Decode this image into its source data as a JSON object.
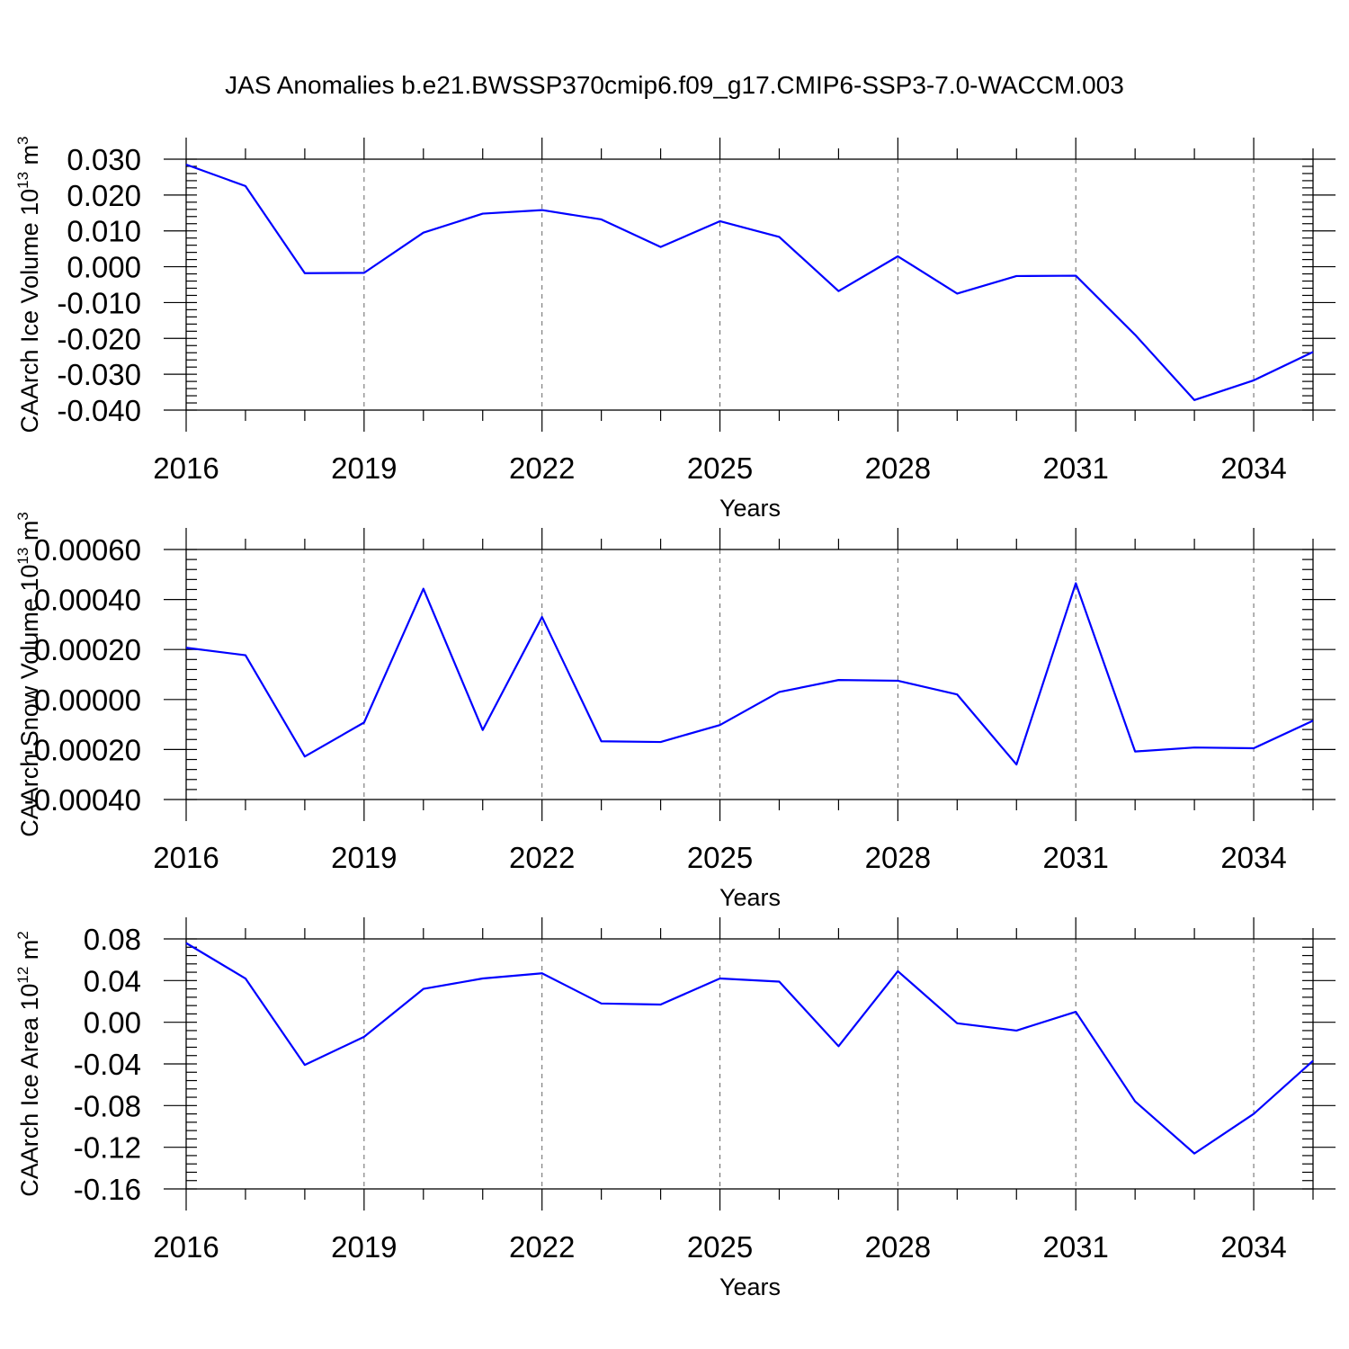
{
  "title": "JAS Anomalies b.e21.BWSSP370cmip6.f09_g17.CMIP6-SSP3-7.0-WACCM.003",
  "colors": {
    "series": "#0000ff",
    "axes": "#000000",
    "grid": "#666666"
  },
  "chart_data": [
    {
      "type": "line",
      "xlabel": "Years",
      "ylabel": {
        "base": "CAArch Ice Volume 10",
        "exp": "13",
        "unit": " m",
        "unit_exp": "3"
      },
      "xlim": [
        2016,
        2035
      ],
      "ylim": [
        -0.04,
        0.03
      ],
      "yticks": [
        -0.04,
        -0.03,
        -0.02,
        -0.01,
        0.0,
        0.01,
        0.02,
        0.03
      ],
      "ytick_labels": [
        "-0.040",
        "-0.030",
        "-0.020",
        "-0.010",
        "0.000",
        "0.010",
        "0.020",
        "0.030"
      ],
      "yminor_step": 0.002,
      "xticks": [
        2016,
        2019,
        2022,
        2025,
        2028,
        2031,
        2034
      ],
      "xtick_labels": [
        "2016",
        "2019",
        "2022",
        "2025",
        "2028",
        "2031",
        "2034"
      ],
      "x": [
        2016,
        2017,
        2018,
        2019,
        2020,
        2021,
        2022,
        2023,
        2024,
        2025,
        2026,
        2027,
        2028,
        2029,
        2030,
        2031,
        2032,
        2033,
        2034,
        2035
      ],
      "values": [
        0.0285,
        0.0225,
        -0.0018,
        -0.0017,
        0.0095,
        0.0148,
        0.0158,
        0.0132,
        0.0055,
        0.0127,
        0.0083,
        -0.0068,
        0.0029,
        -0.0075,
        -0.0026,
        -0.0025,
        -0.019,
        -0.0372,
        -0.0317,
        -0.0238
      ]
    },
    {
      "type": "line",
      "xlabel": "Years",
      "ylabel": {
        "base": "CAArch Snow Volume 10",
        "exp": "13",
        "unit": " m",
        "unit_exp": "3"
      },
      "xlim": [
        2016,
        2035
      ],
      "ylim": [
        -0.0004,
        0.0006
      ],
      "yticks": [
        -0.0004,
        -0.0002,
        0.0,
        0.0002,
        0.0004,
        0.0006
      ],
      "ytick_labels": [
        "-0.00040",
        "-0.00020",
        "0.00000",
        "0.00020",
        "0.00040",
        "0.00060"
      ],
      "yminor_step": 4e-05,
      "xticks": [
        2016,
        2019,
        2022,
        2025,
        2028,
        2031,
        2034
      ],
      "xtick_labels": [
        "2016",
        "2019",
        "2022",
        "2025",
        "2028",
        "2031",
        "2034"
      ],
      "x": [
        2016,
        2017,
        2018,
        2019,
        2020,
        2021,
        2022,
        2023,
        2024,
        2025,
        2026,
        2027,
        2028,
        2029,
        2030,
        2031,
        2032,
        2033,
        2034,
        2035
      ],
      "values": [
        0.000207,
        0.000177,
        -0.000228,
        -9.2e-05,
        0.000443,
        -0.000122,
        0.00033,
        -0.000167,
        -0.00017,
        -0.000102,
        3e-05,
        7.8e-05,
        7.5e-05,
        2e-05,
        -0.00026,
        0.000465,
        -0.000208,
        -0.000192,
        -0.000195,
        -8.5e-05
      ]
    },
    {
      "type": "line",
      "xlabel": "Years",
      "ylabel": {
        "base": "CAArch Ice Area 10",
        "exp": "12",
        "unit": " m",
        "unit_exp": "2"
      },
      "xlim": [
        2016,
        2035
      ],
      "ylim": [
        -0.16,
        0.08
      ],
      "yticks": [
        -0.16,
        -0.12,
        -0.08,
        -0.04,
        0.0,
        0.04,
        0.08
      ],
      "ytick_labels": [
        "-0.16",
        "-0.12",
        "-0.08",
        "-0.04",
        "0.00",
        "0.04",
        "0.08"
      ],
      "yminor_step": 0.008,
      "xticks": [
        2016,
        2019,
        2022,
        2025,
        2028,
        2031,
        2034
      ],
      "xtick_labels": [
        "2016",
        "2019",
        "2022",
        "2025",
        "2028",
        "2031",
        "2034"
      ],
      "x": [
        2016,
        2017,
        2018,
        2019,
        2020,
        2021,
        2022,
        2023,
        2024,
        2025,
        2026,
        2027,
        2028,
        2029,
        2030,
        2031,
        2032,
        2033,
        2034,
        2035
      ],
      "values": [
        0.076,
        0.042,
        -0.041,
        -0.014,
        0.032,
        0.042,
        0.047,
        0.018,
        0.017,
        0.042,
        0.039,
        -0.023,
        0.049,
        -0.001,
        -0.008,
        0.01,
        -0.076,
        -0.126,
        -0.088,
        -0.037
      ]
    }
  ]
}
